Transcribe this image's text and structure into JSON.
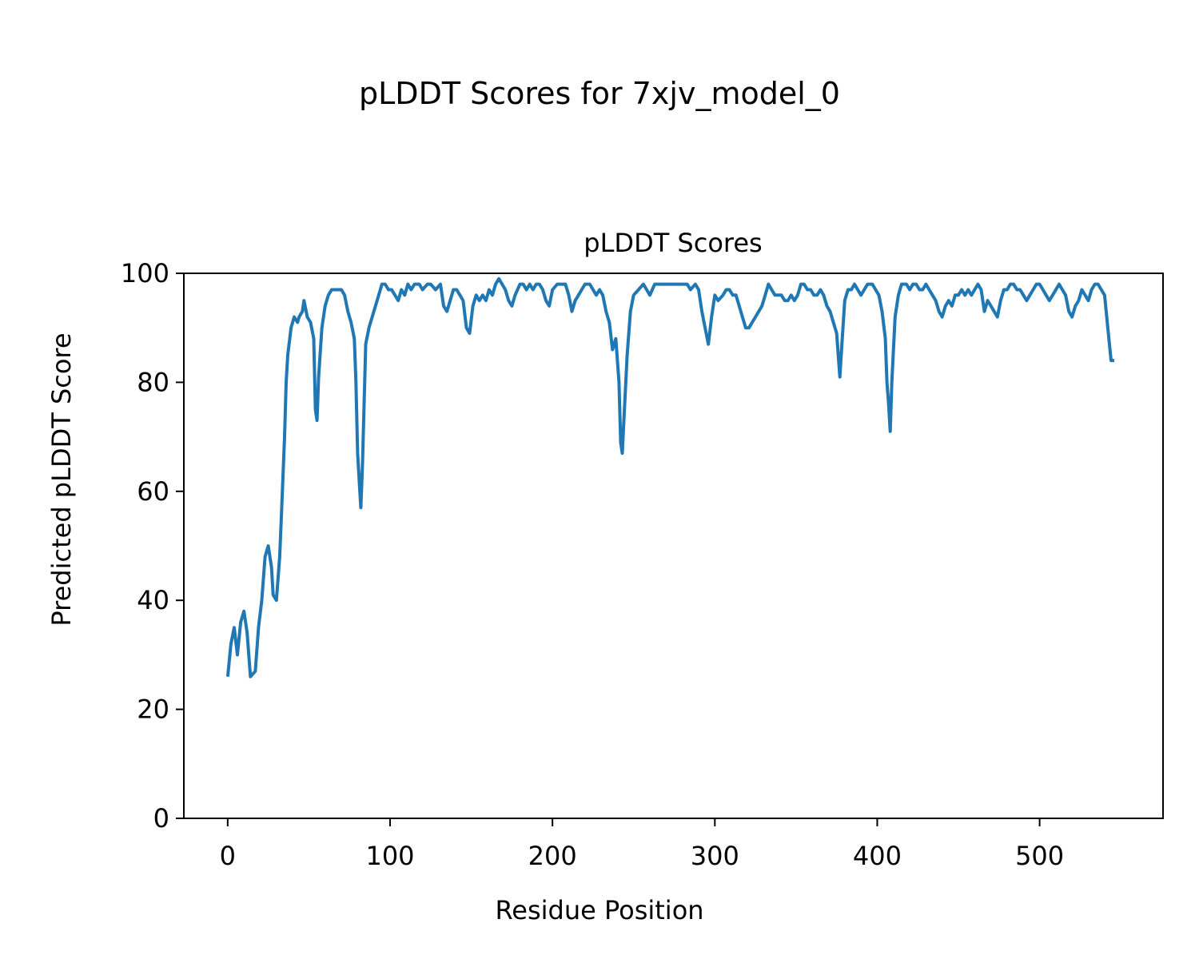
{
  "figure_title": "pLDDT Scores for 7xjv_model_0",
  "chart_data": {
    "type": "line",
    "title": "pLDDT Scores",
    "xlabel": "Residue Position",
    "ylabel": "Predicted pLDDT Score",
    "xlim": [
      -27,
      576
    ],
    "ylim": [
      0,
      100
    ],
    "xticks": [
      0,
      100,
      200,
      300,
      400,
      500
    ],
    "yticks": [
      0,
      20,
      40,
      60,
      80,
      100
    ],
    "grid": false,
    "line_color": "#1f77b4",
    "series": [
      {
        "points": [
          [
            0,
            26
          ],
          [
            2,
            32
          ],
          [
            4,
            35
          ],
          [
            6,
            30
          ],
          [
            8,
            36
          ],
          [
            10,
            38
          ],
          [
            12,
            34
          ],
          [
            14,
            26
          ],
          [
            17,
            27
          ],
          [
            19,
            35
          ],
          [
            21,
            40
          ],
          [
            23,
            48
          ],
          [
            25,
            50
          ],
          [
            27,
            46
          ],
          [
            28,
            41
          ],
          [
            30,
            40
          ],
          [
            32,
            48
          ],
          [
            33,
            55
          ],
          [
            35,
            70
          ],
          [
            36,
            80
          ],
          [
            37,
            85
          ],
          [
            39,
            90
          ],
          [
            41,
            92
          ],
          [
            43,
            91
          ],
          [
            44,
            92
          ],
          [
            46,
            93
          ],
          [
            47,
            95
          ],
          [
            49,
            92
          ],
          [
            51,
            91
          ],
          [
            53,
            88
          ],
          [
            54,
            75
          ],
          [
            55,
            73
          ],
          [
            56,
            81
          ],
          [
            58,
            90
          ],
          [
            60,
            94
          ],
          [
            62,
            96
          ],
          [
            64,
            97
          ],
          [
            66,
            97
          ],
          [
            68,
            97
          ],
          [
            70,
            97
          ],
          [
            72,
            96
          ],
          [
            74,
            93
          ],
          [
            76,
            91
          ],
          [
            78,
            88
          ],
          [
            79,
            80
          ],
          [
            80,
            67
          ],
          [
            82,
            57
          ],
          [
            83,
            65
          ],
          [
            85,
            87
          ],
          [
            87,
            90
          ],
          [
            90,
            93
          ],
          [
            93,
            96
          ],
          [
            95,
            98
          ],
          [
            97,
            98
          ],
          [
            99,
            97
          ],
          [
            101,
            97
          ],
          [
            103,
            96
          ],
          [
            105,
            95
          ],
          [
            107,
            97
          ],
          [
            109,
            96
          ],
          [
            111,
            98
          ],
          [
            113,
            97
          ],
          [
            115,
            98
          ],
          [
            118,
            98
          ],
          [
            120,
            97
          ],
          [
            123,
            98
          ],
          [
            125,
            98
          ],
          [
            128,
            97
          ],
          [
            131,
            98
          ],
          [
            133,
            94
          ],
          [
            135,
            93
          ],
          [
            137,
            95
          ],
          [
            139,
            97
          ],
          [
            141,
            97
          ],
          [
            143,
            96
          ],
          [
            145,
            95
          ],
          [
            147,
            90
          ],
          [
            149,
            89
          ],
          [
            151,
            94
          ],
          [
            153,
            96
          ],
          [
            155,
            95
          ],
          [
            157,
            96
          ],
          [
            159,
            95
          ],
          [
            161,
            97
          ],
          [
            163,
            96
          ],
          [
            165,
            98
          ],
          [
            167,
            99
          ],
          [
            169,
            98
          ],
          [
            171,
            97
          ],
          [
            173,
            95
          ],
          [
            175,
            94
          ],
          [
            177,
            96
          ],
          [
            180,
            98
          ],
          [
            182,
            98
          ],
          [
            184,
            97
          ],
          [
            186,
            98
          ],
          [
            188,
            97
          ],
          [
            190,
            98
          ],
          [
            192,
            98
          ],
          [
            194,
            97
          ],
          [
            196,
            95
          ],
          [
            198,
            94
          ],
          [
            200,
            97
          ],
          [
            203,
            98
          ],
          [
            206,
            98
          ],
          [
            208,
            98
          ],
          [
            210,
            96
          ],
          [
            212,
            93
          ],
          [
            214,
            95
          ],
          [
            216,
            96
          ],
          [
            218,
            97
          ],
          [
            220,
            98
          ],
          [
            223,
            98
          ],
          [
            225,
            97
          ],
          [
            227,
            96
          ],
          [
            229,
            97
          ],
          [
            231,
            96
          ],
          [
            233,
            93
          ],
          [
            235,
            91
          ],
          [
            237,
            86
          ],
          [
            239,
            88
          ],
          [
            241,
            80
          ],
          [
            242,
            69
          ],
          [
            243,
            67
          ],
          [
            244,
            73
          ],
          [
            246,
            85
          ],
          [
            248,
            93
          ],
          [
            250,
            96
          ],
          [
            253,
            97
          ],
          [
            256,
            98
          ],
          [
            258,
            97
          ],
          [
            260,
            96
          ],
          [
            263,
            98
          ],
          [
            266,
            98
          ],
          [
            268,
            98
          ],
          [
            271,
            98
          ],
          [
            273,
            98
          ],
          [
            276,
            98
          ],
          [
            278,
            98
          ],
          [
            280,
            98
          ],
          [
            283,
            98
          ],
          [
            285,
            97
          ],
          [
            288,
            98
          ],
          [
            290,
            97
          ],
          [
            292,
            93
          ],
          [
            294,
            90
          ],
          [
            296,
            87
          ],
          [
            298,
            92
          ],
          [
            300,
            96
          ],
          [
            302,
            95
          ],
          [
            305,
            96
          ],
          [
            307,
            97
          ],
          [
            309,
            97
          ],
          [
            311,
            96
          ],
          [
            313,
            96
          ],
          [
            315,
            94
          ],
          [
            317,
            92
          ],
          [
            319,
            90
          ],
          [
            321,
            90
          ],
          [
            323,
            91
          ],
          [
            325,
            92
          ],
          [
            327,
            93
          ],
          [
            329,
            94
          ],
          [
            331,
            96
          ],
          [
            333,
            98
          ],
          [
            335,
            97
          ],
          [
            337,
            96
          ],
          [
            339,
            96
          ],
          [
            341,
            96
          ],
          [
            343,
            95
          ],
          [
            345,
            95
          ],
          [
            347,
            96
          ],
          [
            349,
            95
          ],
          [
            351,
            96
          ],
          [
            353,
            98
          ],
          [
            355,
            98
          ],
          [
            357,
            97
          ],
          [
            359,
            97
          ],
          [
            361,
            96
          ],
          [
            363,
            96
          ],
          [
            365,
            97
          ],
          [
            367,
            96
          ],
          [
            369,
            94
          ],
          [
            371,
            93
          ],
          [
            373,
            91
          ],
          [
            375,
            89
          ],
          [
            376,
            85
          ],
          [
            377,
            81
          ],
          [
            378,
            86
          ],
          [
            380,
            95
          ],
          [
            382,
            97
          ],
          [
            384,
            97
          ],
          [
            386,
            98
          ],
          [
            388,
            97
          ],
          [
            390,
            96
          ],
          [
            392,
            97
          ],
          [
            394,
            98
          ],
          [
            397,
            98
          ],
          [
            399,
            97
          ],
          [
            401,
            96
          ],
          [
            403,
            93
          ],
          [
            405,
            88
          ],
          [
            406,
            80
          ],
          [
            407,
            76
          ],
          [
            408,
            71
          ],
          [
            409,
            80
          ],
          [
            411,
            92
          ],
          [
            413,
            96
          ],
          [
            415,
            98
          ],
          [
            418,
            98
          ],
          [
            420,
            97
          ],
          [
            422,
            98
          ],
          [
            424,
            98
          ],
          [
            426,
            97
          ],
          [
            428,
            97
          ],
          [
            430,
            98
          ],
          [
            432,
            97
          ],
          [
            434,
            96
          ],
          [
            436,
            95
          ],
          [
            438,
            93
          ],
          [
            440,
            92
          ],
          [
            442,
            94
          ],
          [
            444,
            95
          ],
          [
            446,
            94
          ],
          [
            448,
            96
          ],
          [
            450,
            96
          ],
          [
            452,
            97
          ],
          [
            454,
            96
          ],
          [
            456,
            97
          ],
          [
            458,
            96
          ],
          [
            460,
            97
          ],
          [
            462,
            98
          ],
          [
            464,
            97
          ],
          [
            466,
            93
          ],
          [
            468,
            95
          ],
          [
            470,
            94
          ],
          [
            472,
            93
          ],
          [
            474,
            92
          ],
          [
            476,
            95
          ],
          [
            478,
            97
          ],
          [
            480,
            97
          ],
          [
            482,
            98
          ],
          [
            484,
            98
          ],
          [
            486,
            97
          ],
          [
            488,
            97
          ],
          [
            490,
            96
          ],
          [
            492,
            95
          ],
          [
            494,
            96
          ],
          [
            496,
            97
          ],
          [
            498,
            98
          ],
          [
            500,
            98
          ],
          [
            502,
            97
          ],
          [
            504,
            96
          ],
          [
            506,
            95
          ],
          [
            508,
            96
          ],
          [
            510,
            97
          ],
          [
            512,
            98
          ],
          [
            514,
            97
          ],
          [
            516,
            96
          ],
          [
            518,
            93
          ],
          [
            520,
            92
          ],
          [
            522,
            94
          ],
          [
            524,
            95
          ],
          [
            526,
            97
          ],
          [
            528,
            96
          ],
          [
            530,
            95
          ],
          [
            532,
            97
          ],
          [
            534,
            98
          ],
          [
            536,
            98
          ],
          [
            538,
            97
          ],
          [
            540,
            96
          ],
          [
            542,
            90
          ],
          [
            544,
            84
          ],
          [
            546,
            84
          ]
        ]
      }
    ]
  }
}
